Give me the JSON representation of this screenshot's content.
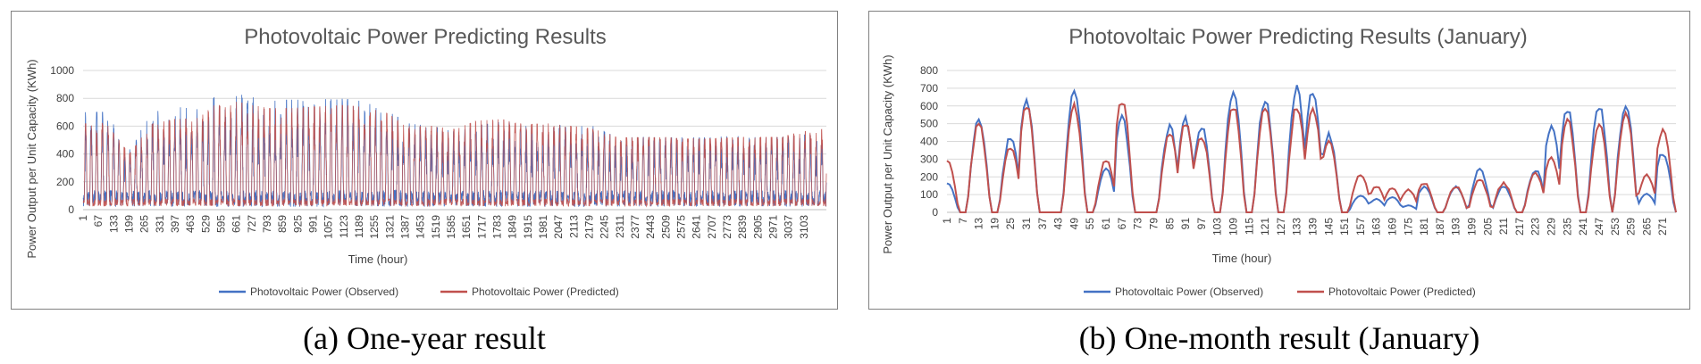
{
  "chart_data": [
    {
      "id": "a",
      "type": "line",
      "title": "Photovoltaic Power Predicting Results",
      "xlabel": "Time (hour)",
      "ylabel": "Power Output per Unit Capacity (KWh)",
      "ylim": [
        0,
        1000
      ],
      "yticks": [
        0,
        200,
        400,
        600,
        800,
        1000
      ],
      "xrange": [
        1,
        3200
      ],
      "xticks": [
        1,
        67,
        133,
        199,
        265,
        331,
        397,
        463,
        529,
        595,
        661,
        727,
        793,
        859,
        925,
        991,
        1057,
        1123,
        1189,
        1255,
        1321,
        1387,
        1453,
        1519,
        1585,
        1651,
        1717,
        1783,
        1849,
        1915,
        1981,
        2047,
        2113,
        2179,
        2245,
        2311,
        2377,
        2443,
        2509,
        2575,
        2641,
        2707,
        2773,
        2839,
        2905,
        2971,
        3037,
        3103
      ],
      "grid": true,
      "legend_position": "bottom",
      "series": [
        {
          "name": "Photovoltaic Power (Observed)",
          "color": "#4472C4",
          "envelope": [
            [
              1,
              700
            ],
            [
              100,
              700
            ],
            [
              200,
              450
            ],
            [
              300,
              700
            ],
            [
              400,
              740
            ],
            [
              500,
              720
            ],
            [
              600,
              850
            ],
            [
              700,
              820
            ],
            [
              800,
              780
            ],
            [
              900,
              790
            ],
            [
              1000,
              790
            ],
            [
              1100,
              800
            ],
            [
              1200,
              780
            ],
            [
              1300,
              720
            ],
            [
              1400,
              620
            ],
            [
              1500,
              600
            ],
            [
              1600,
              560
            ],
            [
              1700,
              600
            ],
            [
              1800,
              640
            ],
            [
              1900,
              600
            ],
            [
              2000,
              610
            ],
            [
              2100,
              600
            ],
            [
              2200,
              600
            ],
            [
              2300,
              520
            ],
            [
              2400,
              520
            ],
            [
              2500,
              520
            ],
            [
              2600,
              520
            ],
            [
              2700,
              520
            ],
            [
              2800,
              530
            ],
            [
              2900,
              520
            ],
            [
              3000,
              520
            ],
            [
              3100,
              540
            ],
            [
              3200,
              540
            ]
          ]
        },
        {
          "name": "Photovoltaic Power (Predicted)",
          "color": "#C0504D",
          "envelope": [
            [
              1,
              620
            ],
            [
              100,
              620
            ],
            [
              200,
              400
            ],
            [
              300,
              620
            ],
            [
              400,
              650
            ],
            [
              500,
              660
            ],
            [
              600,
              800
            ],
            [
              700,
              760
            ],
            [
              800,
              730
            ],
            [
              900,
              730
            ],
            [
              1000,
              740
            ],
            [
              1100,
              750
            ],
            [
              1200,
              740
            ],
            [
              1300,
              700
            ],
            [
              1400,
              600
            ],
            [
              1500,
              600
            ],
            [
              1600,
              580
            ],
            [
              1700,
              640
            ],
            [
              1800,
              650
            ],
            [
              1900,
              610
            ],
            [
              2000,
              620
            ],
            [
              2100,
              600
            ],
            [
              2200,
              580
            ],
            [
              2300,
              520
            ],
            [
              2400,
              520
            ],
            [
              2500,
              520
            ],
            [
              2600,
              510
            ],
            [
              2700,
              510
            ],
            [
              2800,
              520
            ],
            [
              2900,
              520
            ],
            [
              3000,
              520
            ],
            [
              3100,
              560
            ],
            [
              3200,
              580
            ]
          ]
        }
      ]
    },
    {
      "id": "b",
      "type": "line",
      "title": "Photovoltaic Power Predicting Results (January)",
      "xlabel": "Time (hour)",
      "ylabel": "Power Output per Unit Capacity (KWh)",
      "ylim": [
        0,
        800
      ],
      "yticks": [
        0,
        100,
        200,
        300,
        400,
        500,
        600,
        700,
        800
      ],
      "xrange": [
        1,
        276
      ],
      "xticks": [
        1,
        7,
        13,
        19,
        25,
        31,
        37,
        43,
        49,
        55,
        61,
        67,
        73,
        79,
        85,
        91,
        97,
        103,
        109,
        115,
        121,
        127,
        133,
        139,
        145,
        151,
        157,
        163,
        169,
        175,
        181,
        187,
        193,
        199,
        205,
        211,
        217,
        223,
        229,
        235,
        241,
        247,
        253,
        259,
        265,
        271
      ],
      "grid": true,
      "legend_position": "bottom",
      "series": [
        {
          "name": "Photovoltaic Power (Observed)",
          "color": "#4472C4",
          "peaks": [
            [
              1,
              170
            ],
            [
              13,
              540
            ],
            [
              25,
              440
            ],
            [
              31,
              640
            ],
            [
              49,
              700
            ],
            [
              61,
              250
            ],
            [
              67,
              550
            ],
            [
              85,
              500
            ],
            [
              91,
              540
            ],
            [
              97,
              500
            ],
            [
              109,
              700
            ],
            [
              121,
              660
            ],
            [
              133,
              720
            ],
            [
              139,
              710
            ],
            [
              145,
              460
            ],
            [
              157,
              100
            ],
            [
              163,
              80
            ],
            [
              169,
              90
            ],
            [
              175,
              40
            ],
            [
              181,
              150
            ],
            [
              193,
              150
            ],
            [
              202,
              250
            ],
            [
              211,
              150
            ],
            [
              223,
              250
            ],
            [
              229,
              500
            ],
            [
              235,
              610
            ],
            [
              247,
              620
            ],
            [
              257,
              630
            ],
            [
              265,
              110
            ],
            [
              271,
              350
            ]
          ]
        },
        {
          "name": "Photovoltaic Power (Predicted)",
          "color": "#C0504D",
          "peaks": [
            [
              1,
              300
            ],
            [
              13,
              520
            ],
            [
              25,
              380
            ],
            [
              31,
              620
            ],
            [
              49,
              620
            ],
            [
              61,
              300
            ],
            [
              67,
              650
            ],
            [
              85,
              460
            ],
            [
              91,
              520
            ],
            [
              97,
              450
            ],
            [
              109,
              620
            ],
            [
              121,
              610
            ],
            [
              133,
              620
            ],
            [
              139,
              620
            ],
            [
              145,
              430
            ],
            [
              157,
              220
            ],
            [
              163,
              150
            ],
            [
              169,
              140
            ],
            [
              175,
              130
            ],
            [
              181,
              170
            ],
            [
              193,
              150
            ],
            [
              202,
              190
            ],
            [
              211,
              170
            ],
            [
              223,
              230
            ],
            [
              229,
              320
            ],
            [
              235,
              540
            ],
            [
              247,
              520
            ],
            [
              257,
              580
            ],
            [
              265,
              220
            ],
            [
              271,
              480
            ]
          ]
        }
      ]
    }
  ],
  "captions": {
    "a": "(a) One-year result",
    "b": "(b) One-month result (January)"
  }
}
